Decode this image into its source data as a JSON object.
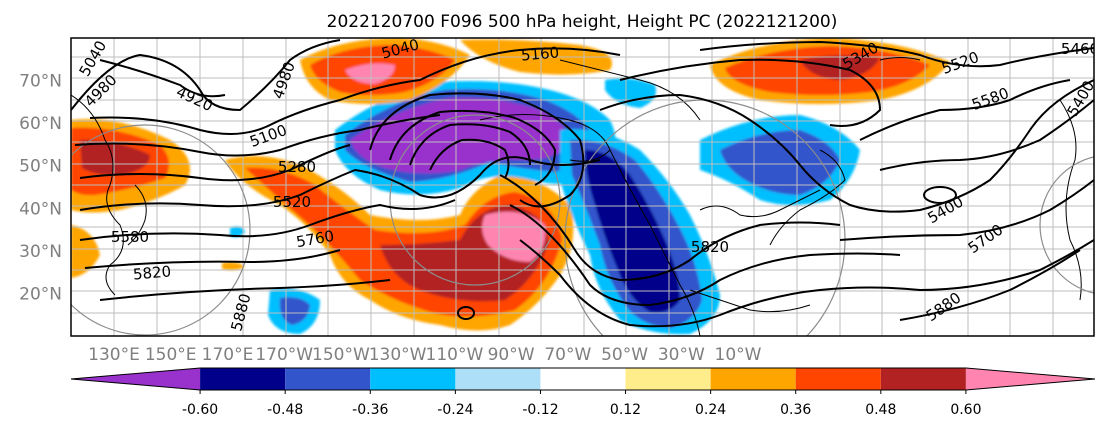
{
  "chart_data": {
    "type": "heatmap",
    "title": "2022120700 F096 500 hPa height, Height PC (2022121200)",
    "x_ticks": [
      "130°E",
      "150°E",
      "170°E",
      "170°W",
      "150°W",
      "130°W",
      "110°W",
      "90°W",
      "70°W",
      "50°W",
      "30°W",
      "10°W"
    ],
    "y_ticks": [
      "20°N",
      "30°N",
      "40°N",
      "50°N",
      "60°N",
      "70°N"
    ],
    "colorbar": {
      "levels": [
        "-0.60",
        "-0.48",
        "-0.36",
        "-0.24",
        "-0.12",
        "0.12",
        "0.24",
        "0.36",
        "0.48",
        "0.60"
      ],
      "colors": [
        "#9932CC",
        "#00008B",
        "#3355CC",
        "#00BFFF",
        "#ADDFF8",
        "#FFFFFF",
        "#FFEC8B",
        "#FFA500",
        "#FF4500",
        "#B22222",
        "#FF85B0"
      ],
      "extend": "both"
    },
    "contour_labels": [
      "5040",
      "4980",
      "4920",
      "4980",
      "5040",
      "5160",
      "5100",
      "5280",
      "5520",
      "5580",
      "5760",
      "5820",
      "5880",
      "5880",
      "5820",
      "5400",
      "5700",
      "5340",
      "5520",
      "5580",
      "5400",
      "5460"
    ],
    "grid": true,
    "coastlines": true
  }
}
